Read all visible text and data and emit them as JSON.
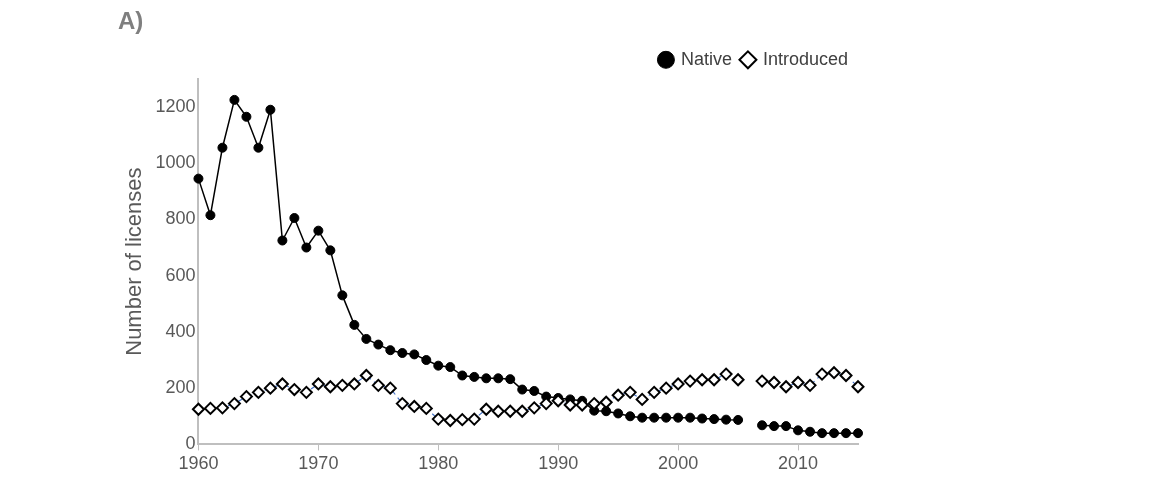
{
  "chart_data": {
    "type": "line",
    "title": "A)",
    "ylabel": "Number of licenses",
    "x": [
      1960,
      1961,
      1962,
      1963,
      1964,
      1965,
      1966,
      1967,
      1968,
      1969,
      1970,
      1971,
      1972,
      1973,
      1974,
      1975,
      1976,
      1977,
      1978,
      1979,
      1980,
      1981,
      1982,
      1983,
      1984,
      1985,
      1986,
      1987,
      1988,
      1989,
      1990,
      1991,
      1992,
      1993,
      1994,
      1995,
      1996,
      1997,
      1998,
      1999,
      2000,
      2001,
      2002,
      2003,
      2004,
      2005,
      2006,
      2007,
      2008,
      2009,
      2010,
      2011,
      2012,
      2013,
      2014,
      2015
    ],
    "series": [
      {
        "name": "Native",
        "color": "#000000",
        "marker": "circle",
        "line_style": "solid",
        "values": [
          945,
          815,
          1055,
          1225,
          1165,
          1055,
          1190,
          725,
          805,
          700,
          760,
          690,
          530,
          425,
          375,
          355,
          335,
          325,
          320,
          300,
          280,
          275,
          245,
          240,
          235,
          235,
          232,
          195,
          190,
          170,
          165,
          160,
          155,
          120,
          118,
          110,
          100,
          95,
          95,
          95,
          95,
          95,
          92,
          90,
          88,
          87,
          null,
          68,
          65,
          65,
          50,
          45,
          40,
          40,
          40,
          40
        ]
      },
      {
        "name": "Introduced",
        "color": "#4472c4",
        "marker": "diamond",
        "line_style": "dashed",
        "values": [
          125,
          128,
          130,
          145,
          170,
          185,
          200,
          215,
          195,
          185,
          215,
          205,
          210,
          215,
          245,
          210,
          200,
          145,
          135,
          128,
          90,
          85,
          88,
          90,
          125,
          118,
          118,
          118,
          130,
          145,
          155,
          140,
          140,
          145,
          150,
          175,
          185,
          160,
          185,
          200,
          215,
          225,
          230,
          230,
          250,
          230,
          null,
          225,
          220,
          205,
          220,
          210,
          250,
          255,
          245,
          205
        ]
      }
    ],
    "xlim": [
      1960,
      2015
    ],
    "xticks": [
      1960,
      1970,
      1980,
      1990,
      2000,
      2010
    ],
    "ylim": [
      0,
      1300
    ],
    "yticks": [
      0,
      200,
      400,
      600,
      800,
      1000,
      1200
    ],
    "grid": false,
    "legend": "top right"
  }
}
